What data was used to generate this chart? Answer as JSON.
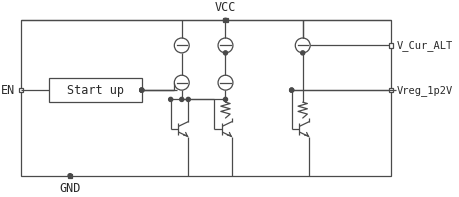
{
  "vcc_label": "VCC",
  "gnd_label": "GND",
  "en_label": "EN",
  "startup_label": "Start up",
  "out1_label": "V_Cur_ALT",
  "out2_label": "Vreg_1p2V",
  "line_color": "#4a4a4a",
  "bg_color": "#ffffff",
  "text_color": "#2a2a2a",
  "font_size": 8.5,
  "out_font_size": 7.5
}
